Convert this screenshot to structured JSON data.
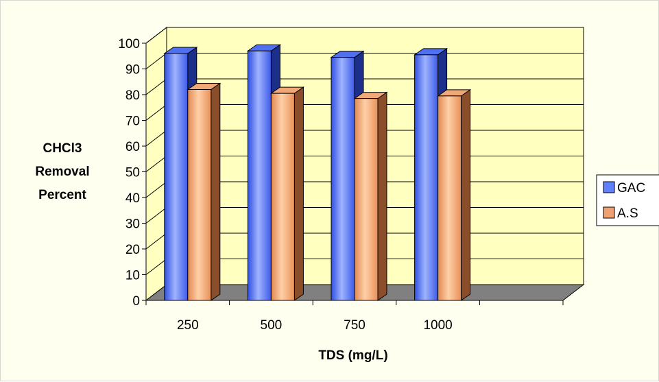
{
  "chart_data": {
    "type": "bar",
    "categories": [
      "250",
      "500",
      "750",
      "1000"
    ],
    "series": [
      {
        "name": "GAC",
        "values": [
          96,
          97,
          94.5,
          95.5
        ]
      },
      {
        "name": "A.S",
        "values": [
          82,
          80.5,
          78.5,
          79.5
        ]
      }
    ],
    "xlabel": "TDS (mg/L)",
    "ylabel": [
      "CHCl3",
      "Removal",
      "Percent"
    ],
    "ylim": [
      0,
      100
    ],
    "yticks": [
      0,
      10,
      20,
      30,
      40,
      50,
      60,
      70,
      80,
      90,
      100
    ],
    "grid": true,
    "legend_position": "right",
    "colors": {
      "plot_background": "#ffffc0",
      "floor": "#808080",
      "GAC": "#6080ff",
      "A.S": "#f0a070",
      "outer_background": "#fffff0"
    }
  }
}
